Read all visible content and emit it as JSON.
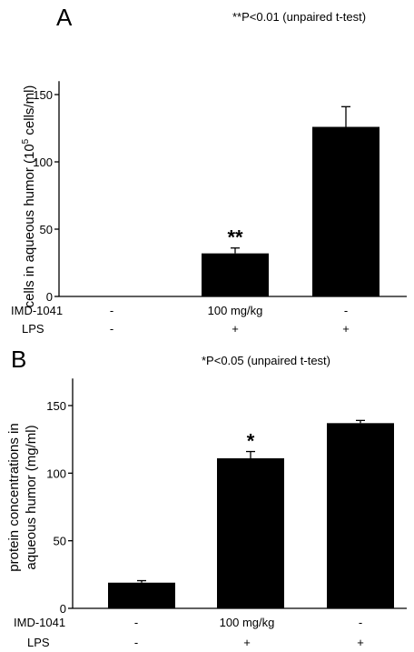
{
  "chart_data": [
    {
      "type": "bar",
      "panel_label": "A",
      "annotation": "**P<0.01 (unpaired t-test)",
      "ylabel_main": "cells in aqueous humor (10",
      "ylabel_sup": "5",
      "ylabel_tail": " cells/ml)",
      "ylim": [
        0,
        160
      ],
      "yticks": [
        "0",
        "50",
        "100",
        "150"
      ],
      "values": [
        0,
        32,
        126
      ],
      "errors": [
        0,
        4,
        15
      ],
      "significance": [
        "",
        "**",
        ""
      ],
      "rows": [
        {
          "label": "IMD-1041",
          "cells": [
            "-",
            "100 mg/kg",
            "-"
          ]
        },
        {
          "label": "LPS",
          "cells": [
            "-",
            "+",
            "+"
          ]
        }
      ]
    },
    {
      "type": "bar",
      "panel_label": "B",
      "annotation": "*P<0.05 (unpaired t-test)",
      "ylabel_line1": "protein concentrations in",
      "ylabel_line2": "aqueous humor (mg/ml)",
      "ylim": [
        0,
        170
      ],
      "yticks": [
        "0",
        "50",
        "100",
        "150"
      ],
      "values": [
        19,
        111,
        137
      ],
      "errors": [
        1.5,
        5,
        2
      ],
      "significance": [
        "",
        "*",
        ""
      ],
      "rows": [
        {
          "label": "IMD-1041",
          "cells": [
            "-",
            "100 mg/kg",
            "-"
          ]
        },
        {
          "label": "LPS",
          "cells": [
            "-",
            "+",
            "+"
          ]
        }
      ]
    }
  ]
}
